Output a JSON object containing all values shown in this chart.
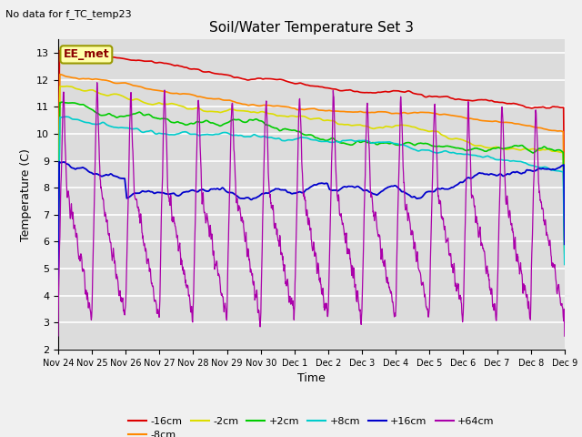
{
  "title": "Soil/Water Temperature Set 3",
  "xlabel": "Time",
  "ylabel": "Temperature (C)",
  "subtitle": "No data for f_TC_temp23",
  "legend_label": "EE_met",
  "ylim": [
    2.0,
    13.5
  ],
  "yticks": [
    2.0,
    3.0,
    4.0,
    5.0,
    6.0,
    7.0,
    8.0,
    9.0,
    10.0,
    11.0,
    12.0,
    13.0
  ],
  "xtick_labels": [
    "Nov 24",
    "Nov 25",
    "Nov 26",
    "Nov 27",
    "Nov 28",
    "Nov 29",
    "Nov 30",
    "Dec 1",
    "Dec 2",
    "Dec 3",
    "Dec 4",
    "Dec 5",
    "Dec 6",
    "Dec 7",
    "Dec 8",
    "Dec 9"
  ],
  "colors": {
    "-16cm": "#dd0000",
    "-8cm": "#ff8800",
    "-2cm": "#dddd00",
    "+2cm": "#00cc00",
    "+8cm": "#00cccc",
    "+16cm": "#0000cc",
    "+64cm": "#aa00aa"
  },
  "background_color": "#dcdcdc",
  "fig_bg_color": "#f0f0f0"
}
